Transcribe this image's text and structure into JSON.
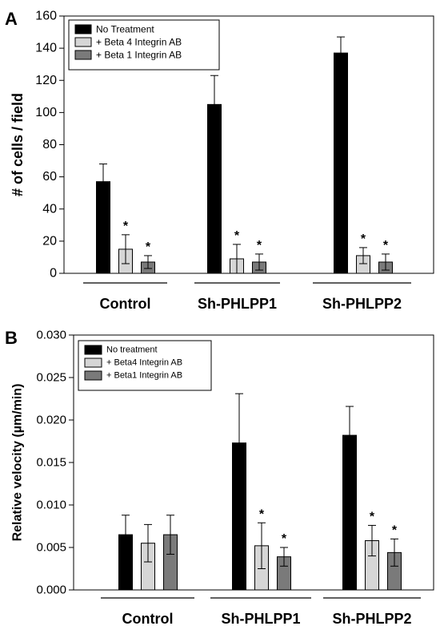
{
  "chart_data": [
    {
      "panel_label": "A",
      "type": "bar",
      "ylabel": "# of cells / field",
      "ylim": [
        0,
        160
      ],
      "yticks": [
        0,
        20,
        40,
        60,
        80,
        100,
        120,
        140,
        160
      ],
      "ytick_labels": [
        "0",
        "20",
        "40",
        "60",
        "80",
        "100",
        "120",
        "140",
        "160"
      ],
      "categories": [
        "Control",
        "Sh-PHLPP1",
        "Sh-PHLPP2"
      ],
      "legend_position": "top-left",
      "grid": false,
      "series": [
        {
          "name": "No Treatment",
          "color": "#000000",
          "values": [
            57,
            105,
            137
          ],
          "errors": [
            11,
            18,
            10
          ],
          "stars": [
            false,
            false,
            false
          ]
        },
        {
          "name": "+ Beta 4 Integrin AB",
          "color": "#d6d6d6",
          "values": [
            15,
            9,
            11
          ],
          "errors": [
            9,
            9,
            5
          ],
          "stars": [
            true,
            true,
            true
          ]
        },
        {
          "name": "+ Beta 1 Integrin AB",
          "color": "#7a7a7a",
          "values": [
            7,
            7,
            7
          ],
          "errors": [
            4,
            5,
            5
          ],
          "stars": [
            true,
            true,
            true
          ]
        }
      ],
      "star_symbol": "*"
    },
    {
      "panel_label": "B",
      "type": "bar",
      "ylabel": "Relative velocity (µm/min)",
      "ylim": [
        0,
        0.03
      ],
      "yticks": [
        0,
        0.005,
        0.01,
        0.015,
        0.02,
        0.025,
        0.03
      ],
      "ytick_labels": [
        "0.000",
        "0.005",
        "0.010",
        "0.015",
        "0.020",
        "0.025",
        "0.030"
      ],
      "categories": [
        "Control",
        "Sh-PHLPP1",
        "Sh-PHLPP2"
      ],
      "legend_position": "top-left",
      "grid": false,
      "series": [
        {
          "name": "No treatment",
          "color": "#000000",
          "values": [
            0.0065,
            0.0173,
            0.0182
          ],
          "errors": [
            0.0023,
            0.0058,
            0.0034
          ],
          "stars": [
            false,
            false,
            false
          ]
        },
        {
          "name": " + Beta4 Integrin AB",
          "color": "#d6d6d6",
          "values": [
            0.0055,
            0.0052,
            0.0058
          ],
          "errors": [
            0.0022,
            0.0027,
            0.0018
          ],
          "stars": [
            false,
            true,
            true
          ]
        },
        {
          "name": "+ Beta1 Integrin AB",
          "color": "#7a7a7a",
          "values": [
            0.0065,
            0.0039,
            0.0044
          ],
          "errors": [
            0.0023,
            0.0011,
            0.0016
          ],
          "stars": [
            false,
            true,
            true
          ]
        }
      ],
      "star_symbol": "*"
    }
  ]
}
